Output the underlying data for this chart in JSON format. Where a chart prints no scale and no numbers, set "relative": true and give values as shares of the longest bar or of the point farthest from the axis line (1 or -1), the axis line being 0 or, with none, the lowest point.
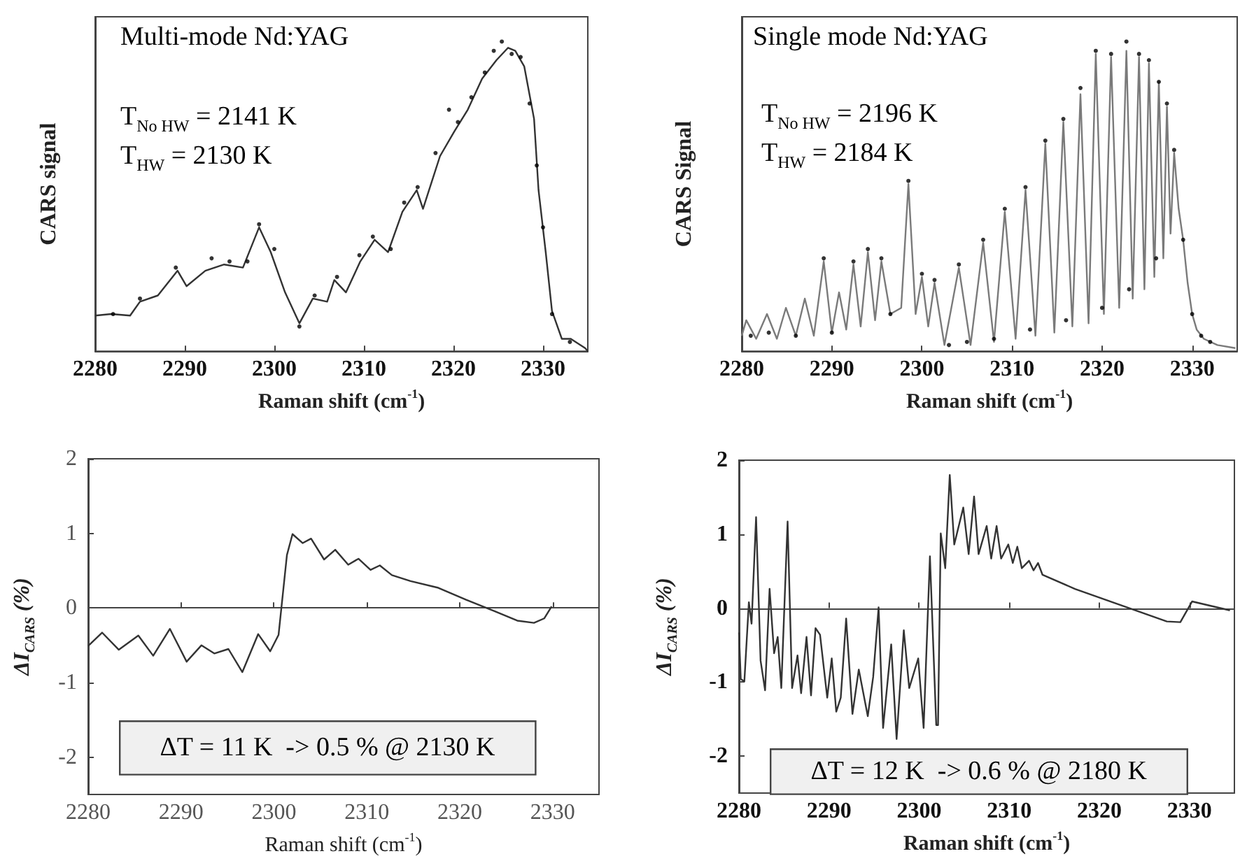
{
  "chart_data": [
    {
      "type": "line",
      "relative": true,
      "xlabel": "Raman shift (cm$^{-1}$)",
      "ylabel": "CARS signal",
      "xlim": [
        2280,
        2335
      ],
      "xticks": [
        2280,
        2290,
        2300,
        2310,
        2320,
        2330
      ],
      "annotations": [
        "Multi-mode Nd:YAG",
        "T$_{No HW}$ = 2141 K",
        "T$_{HW}$ = 2130 K"
      ],
      "series": [
        {
          "marker": "none",
          "color": "#333333",
          "x": [
            2280,
            2281.8,
            2283.9,
            2285,
            2287,
            2289.2,
            2290.2,
            2292.3,
            2294.4,
            2296.5,
            2298.3,
            2299.6,
            2301.2,
            2302.8,
            2304.3,
            2305.9,
            2306.7,
            2308,
            2309.6,
            2311.2,
            2312.7,
            2314.3,
            2315.9,
            2316.6,
            2318.5,
            2320.1,
            2321.6,
            2323.2,
            2324.8,
            2326.1,
            2326.9,
            2327.9,
            2329,
            2329.5,
            2330.3,
            2331,
            2332.1,
            2333.1,
            2334.7,
            2335
          ],
          "values": [
            0.115,
            0.12,
            0.115,
            0.16,
            0.18,
            0.26,
            0.21,
            0.26,
            0.28,
            0.27,
            0.4,
            0.32,
            0.19,
            0.09,
            0.17,
            0.16,
            0.23,
            0.19,
            0.29,
            0.36,
            0.32,
            0.45,
            0.52,
            0.46,
            0.63,
            0.71,
            0.78,
            0.88,
            0.94,
            0.98,
            0.97,
            0.92,
            0.75,
            0.52,
            0.32,
            0.13,
            0.04,
            0.04,
            0.01,
            0
          ]
        },
        {
          "type": "scatter",
          "marker": "circle",
          "color": "#000000",
          "x": [
            2282,
            2285,
            2289,
            2293,
            2295,
            2297,
            2298.3,
            2300,
            2302.8,
            2304.5,
            2307,
            2309.5,
            2311,
            2313,
            2314.5,
            2316,
            2318,
            2319.5,
            2320.5,
            2322,
            2323.5,
            2324.5,
            2325.4,
            2326.5,
            2327.5,
            2328.5,
            2329.3,
            2330,
            2331,
            2333
          ],
          "values": [
            0.12,
            0.17,
            0.27,
            0.3,
            0.29,
            0.29,
            0.41,
            0.33,
            0.08,
            0.18,
            0.24,
            0.31,
            0.37,
            0.33,
            0.48,
            0.53,
            0.64,
            0.78,
            0.74,
            0.82,
            0.9,
            0.97,
            1,
            0.96,
            0.95,
            0.8,
            0.6,
            0.4,
            0.12,
            0.03
          ]
        }
      ]
    },
    {
      "type": "line",
      "relative": true,
      "xlabel": "Raman shift (cm$^{-1}$)",
      "ylabel": "CARS Signal",
      "xlim": [
        2280,
        2335
      ],
      "xticks": [
        2280,
        2290,
        2300,
        2310,
        2320,
        2330
      ],
      "annotations": [
        "Single mode Nd:YAG",
        "T$_{No HW}$ = 2196 K",
        "T$_{HW}$ = 2184 K"
      ],
      "series": [
        {
          "marker": "none",
          "color": "#7a7a7a",
          "x": [
            2280,
            2280.5,
            2281.6,
            2282.8,
            2283.9,
            2284.9,
            2286,
            2287,
            2288,
            2289.1,
            2290,
            2290.8,
            2291.6,
            2292.4,
            2293.2,
            2294,
            2294.8,
            2295.5,
            2296.5,
            2297.7,
            2298.5,
            2299.3,
            2300,
            2300.7,
            2301.4,
            2302.5,
            2304.1,
            2305.4,
            2306.8,
            2308,
            2309.2,
            2310.4,
            2311.5,
            2312.6,
            2313.7,
            2314.7,
            2315.7,
            2316.7,
            2317.6,
            2318.5,
            2319.3,
            2320.2,
            2321,
            2321.9,
            2322.7,
            2323.4,
            2324.1,
            2324.7,
            2325.2,
            2325.8,
            2326.3,
            2326.8,
            2327.2,
            2327.6,
            2328,
            2328.5,
            2329,
            2329.5,
            2330,
            2330.5,
            2331.3,
            2332.8,
            2334.8
          ],
          "values": [
            0.05,
            0.1,
            0.04,
            0.12,
            0.04,
            0.14,
            0.05,
            0.17,
            0.05,
            0.29,
            0.06,
            0.19,
            0.07,
            0.28,
            0.08,
            0.32,
            0.1,
            0.29,
            0.12,
            0.14,
            0.54,
            0.12,
            0.24,
            0.08,
            0.22,
            0.02,
            0.27,
            0.02,
            0.35,
            0.03,
            0.45,
            0.04,
            0.52,
            0.05,
            0.67,
            0.06,
            0.74,
            0.08,
            0.83,
            0.09,
            0.96,
            0.12,
            0.95,
            0.14,
            0.97,
            0.17,
            0.95,
            0.2,
            0.93,
            0.24,
            0.87,
            0.3,
            0.79,
            0.38,
            0.64,
            0.46,
            0.36,
            0.22,
            0.12,
            0.07,
            0.04,
            0.02,
            0.01
          ]
        },
        {
          "type": "scatter",
          "marker": "circle",
          "color": "#000000",
          "x": [
            2281,
            2283,
            2286,
            2289.1,
            2290,
            2292.4,
            2294,
            2295.5,
            2296.5,
            2298.5,
            2300,
            2301.4,
            2303,
            2304.1,
            2305,
            2306.8,
            2308,
            2309.2,
            2311.5,
            2312,
            2313.7,
            2315.7,
            2316,
            2317.6,
            2319.3,
            2320,
            2321,
            2322.7,
            2323,
            2324.1,
            2325.2,
            2326,
            2326.3,
            2327.2,
            2328,
            2329,
            2330,
            2331,
            2332
          ],
          "values": [
            0.05,
            0.06,
            0.05,
            0.3,
            0.06,
            0.29,
            0.33,
            0.3,
            0.12,
            0.55,
            0.25,
            0.23,
            0.02,
            0.28,
            0.03,
            0.36,
            0.04,
            0.46,
            0.53,
            0.07,
            0.68,
            0.75,
            0.1,
            0.85,
            0.97,
            0.14,
            0.96,
            1,
            0.2,
            0.96,
            0.94,
            0.3,
            0.87,
            0.8,
            0.65,
            0.36,
            0.12,
            0.05,
            0.03
          ]
        }
      ]
    },
    {
      "type": "line",
      "xlabel": "Raman shift (cm$^{-1}$)",
      "ylabel": "ΔI$_{CARS}$ (%)",
      "xlim": [
        2280,
        2335
      ],
      "xticks": [
        2280,
        2290,
        2300,
        2310,
        2320,
        2330
      ],
      "ylim": [
        -2.5,
        2
      ],
      "yticks": [
        -2,
        -1,
        0,
        1,
        2
      ],
      "annotations": [
        "ΔT = 11 K  -> 0.5 % @ 2130 K"
      ],
      "series": [
        {
          "marker": "none",
          "color": "#333333",
          "x": [
            2280,
            2281.5,
            2283.3,
            2285.4,
            2287,
            2288.8,
            2290.6,
            2292.2,
            2293.6,
            2295.1,
            2296.6,
            2298.3,
            2299.6,
            2300.5,
            2301.4,
            2302,
            2303.1,
            2304,
            2305.4,
            2306.6,
            2308,
            2309.1,
            2310.4,
            2311.4,
            2312.7,
            2314.7,
            2317.7,
            2320.7,
            2323.7,
            2326.2,
            2328,
            2329.1,
            2329.9
          ],
          "values": [
            -0.51,
            -0.33,
            -0.56,
            -0.37,
            -0.64,
            -0.28,
            -0.72,
            -0.5,
            -0.61,
            -0.55,
            -0.86,
            -0.35,
            -0.58,
            -0.36,
            0.71,
            0.99,
            0.87,
            0.93,
            0.65,
            0.78,
            0.58,
            0.66,
            0.51,
            0.57,
            0.44,
            0.36,
            0.27,
            0.11,
            -0.04,
            -0.17,
            -0.2,
            -0.14,
            0.02
          ]
        }
      ]
    },
    {
      "type": "line",
      "xlabel": "Raman shift (cm$^{-1}$)",
      "ylabel": "ΔI$_{CARS}$ (%)",
      "xlim": [
        2280,
        2335
      ],
      "xticks": [
        2280,
        2290,
        2300,
        2310,
        2320,
        2330
      ],
      "ylim": [
        -2.5,
        2
      ],
      "yticks": [
        -2,
        -1,
        0,
        1,
        2
      ],
      "annotations": [
        "ΔT = 12 K  -> 0.6 % @ 2180 K"
      ],
      "series": [
        {
          "marker": "none",
          "color": "#333333",
          "x": [
            2280,
            2280.2,
            2280.6,
            2281.1,
            2281.4,
            2281.9,
            2282.4,
            2282.9,
            2283.4,
            2283.9,
            2284.3,
            2284.7,
            2285.4,
            2285.9,
            2286.5,
            2286.9,
            2287.5,
            2288,
            2288.5,
            2289,
            2289.8,
            2290.3,
            2290.8,
            2291.3,
            2291.9,
            2292.6,
            2293.3,
            2294.3,
            2294.9,
            2295.5,
            2296,
            2296.9,
            2297.5,
            2298.3,
            2298.9,
            2299.9,
            2300.5,
            2301.2,
            2301.9,
            2302.1,
            2302.4,
            2302.9,
            2303.4,
            2303.9,
            2304.9,
            2305.5,
            2306.1,
            2306.6,
            2307.5,
            2308,
            2308.6,
            2309.1,
            2309.9,
            2310.4,
            2310.9,
            2311.4,
            2312.2,
            2312.7,
            2313.2,
            2313.7,
            2317.3,
            2322.4,
            2327.5,
            2329,
            2330.3,
            2334.5
          ],
          "values": [
            -0.33,
            -0.96,
            -0.99,
            0.08,
            -0.21,
            1.23,
            -0.71,
            -1.11,
            0.26,
            -0.61,
            -0.39,
            -1.08,
            1.17,
            -1.08,
            -0.64,
            -1.15,
            -0.39,
            -1.18,
            -0.27,
            -0.36,
            -1.21,
            -0.68,
            -1.4,
            -1.21,
            -0.14,
            -1.43,
            -0.83,
            -1.46,
            -0.93,
            0.01,
            -1.62,
            -0.49,
            -1.77,
            -0.3,
            -1.08,
            -0.68,
            -1.62,
            0.7,
            -1.58,
            -1.58,
            1.01,
            0.54,
            1.8,
            0.86,
            1.36,
            0.73,
            1.51,
            0.73,
            1.11,
            0.67,
            1.11,
            0.67,
            0.86,
            0.61,
            0.83,
            0.54,
            0.64,
            0.51,
            0.61,
            0.45,
            0.26,
            0.04,
            -0.18,
            -0.19,
            0.09,
            -0.03
          ]
        }
      ]
    }
  ]
}
